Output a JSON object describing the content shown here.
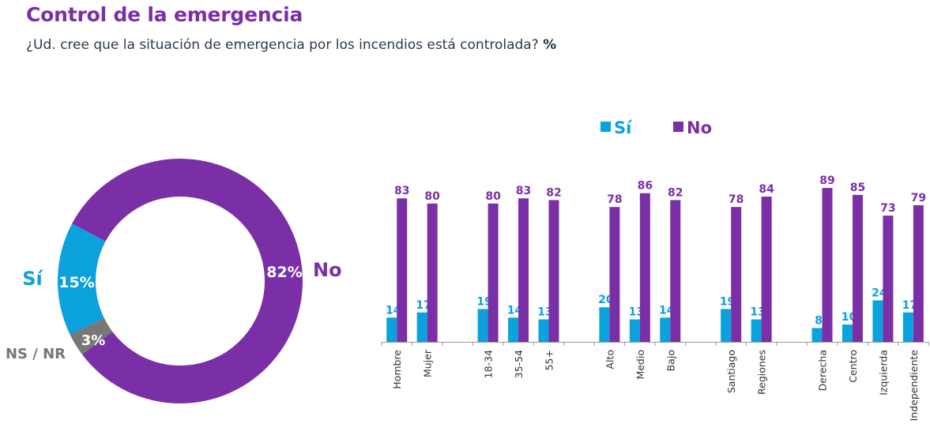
{
  "header": {
    "title": "Control de la emergencia",
    "question": "¿Ud. cree que la situación de emergencia por los incendios está controlada?",
    "unit": "%"
  },
  "colors": {
    "si": "#0AA1DD",
    "no": "#7B2FA6",
    "nsnr": "#777777",
    "title": "#7B2FA6",
    "axis": "#9a9a9a"
  },
  "chart_data": [
    {
      "type": "pie",
      "variant": "donut",
      "title": "",
      "slices": [
        {
          "name": "No",
          "value": 82,
          "label": "82%",
          "color": "#7B2FA6"
        },
        {
          "name": "Sí",
          "value": 15,
          "label": "15%",
          "color": "#0AA1DD"
        },
        {
          "name": "NS / NR",
          "value": 3,
          "label": "3%",
          "color": "#777777"
        }
      ]
    },
    {
      "type": "bar",
      "title": "",
      "xlabel": "",
      "ylabel": "",
      "ylim": [
        0,
        100
      ],
      "grid": false,
      "legend": {
        "position": "top",
        "entries": [
          "Sí",
          "No"
        ]
      },
      "categories": [
        "Hombre",
        "Mujer",
        "",
        "18-34",
        "35-54",
        "55+",
        "",
        "Alto",
        "Medio",
        "Bajo",
        "",
        "Santiago",
        "Regiones",
        "",
        "Derecha",
        "Centro",
        "Izquierda",
        "Independiente"
      ],
      "series": [
        {
          "name": "Sí",
          "color": "#0AA1DD",
          "values": [
            14,
            17,
            null,
            19,
            14,
            13,
            null,
            20,
            13,
            14,
            null,
            19,
            13,
            null,
            8,
            10,
            24,
            17
          ]
        },
        {
          "name": "No",
          "color": "#7B2FA6",
          "values": [
            83,
            80,
            null,
            80,
            83,
            82,
            null,
            78,
            86,
            82,
            null,
            78,
            84,
            null,
            89,
            85,
            73,
            79
          ]
        }
      ]
    }
  ]
}
